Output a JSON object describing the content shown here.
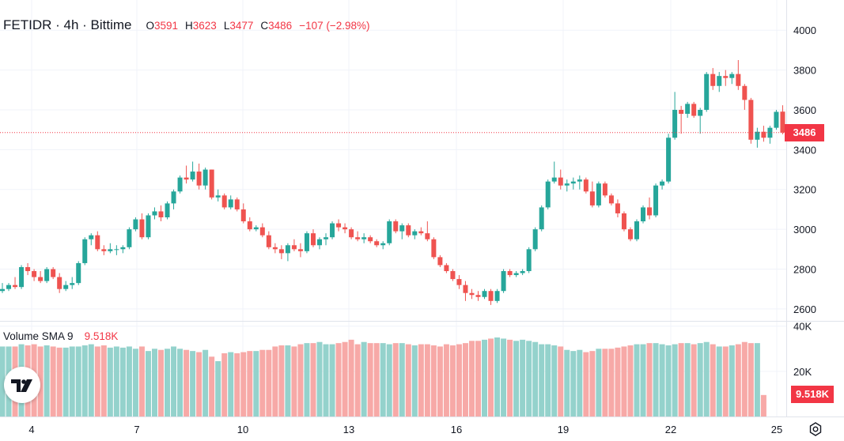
{
  "header": {
    "symbol": "FETIDR · 4h · Bittime",
    "open_label": "O",
    "open": "3591",
    "high_label": "H",
    "high": "3623",
    "low_label": "L",
    "low": "3477",
    "close_label": "C",
    "close": "3486",
    "change": "−107 (−2.98%)"
  },
  "volume_legend": {
    "name": "Volume SMA 9",
    "value": "9.518K"
  },
  "price_tag": "3486",
  "volume_tag": "9.518K",
  "colors": {
    "up": "#26a69a",
    "down": "#ef5350",
    "vol_up": "#94d2cc",
    "vol_down": "#f7a9a7",
    "grid": "#f0f3fa",
    "text": "#131722"
  },
  "icons": {
    "logo": "tradingview-logo-icon",
    "settings": "settings-icon"
  },
  "chart_data": {
    "type": "candlestick",
    "interval": "4h",
    "price_axis": {
      "ylim": [
        2540,
        4120
      ],
      "ticks": [
        2600,
        2800,
        3000,
        3200,
        3400,
        3600,
        3800,
        4000
      ]
    },
    "volume_axis": {
      "ylim": [
        0,
        42000
      ],
      "ticks": [
        "20K",
        "40K"
      ],
      "tick_values": [
        20000,
        40000
      ]
    },
    "x_ticks": [
      "4",
      "7",
      "10",
      "13",
      "16",
      "19",
      "22",
      "25"
    ],
    "last_price": 3486,
    "candles": [
      [
        2690,
        2730,
        2680,
        2700
      ],
      [
        2700,
        2730,
        2690,
        2720
      ],
      [
        2720,
        2760,
        2700,
        2710
      ],
      [
        2710,
        2820,
        2700,
        2810
      ],
      [
        2810,
        2830,
        2770,
        2790
      ],
      [
        2790,
        2800,
        2740,
        2760
      ],
      [
        2760,
        2790,
        2730,
        2740
      ],
      [
        2740,
        2810,
        2730,
        2800
      ],
      [
        2800,
        2810,
        2750,
        2760
      ],
      [
        2760,
        2780,
        2680,
        2700
      ],
      [
        2700,
        2740,
        2690,
        2720
      ],
      [
        2720,
        2760,
        2700,
        2730
      ],
      [
        2730,
        2840,
        2720,
        2830
      ],
      [
        2830,
        2960,
        2820,
        2950
      ],
      [
        2950,
        2980,
        2920,
        2970
      ],
      [
        2970,
        2990,
        2890,
        2900
      ],
      [
        2900,
        2920,
        2870,
        2890
      ],
      [
        2890,
        2930,
        2880,
        2900
      ],
      [
        2900,
        2920,
        2870,
        2900
      ],
      [
        2900,
        2920,
        2880,
        2910
      ],
      [
        2910,
        3010,
        2900,
        3000
      ],
      [
        3000,
        3060,
        2990,
        3050
      ],
      [
        3050,
        3080,
        2950,
        2960
      ],
      [
        2960,
        3080,
        2950,
        3070
      ],
      [
        3070,
        3110,
        3050,
        3090
      ],
      [
        3090,
        3120,
        3040,
        3060
      ],
      [
        3060,
        3140,
        3050,
        3130
      ],
      [
        3130,
        3200,
        3100,
        3190
      ],
      [
        3190,
        3270,
        3180,
        3260
      ],
      [
        3260,
        3320,
        3230,
        3250
      ],
      [
        3250,
        3340,
        3240,
        3290
      ],
      [
        3290,
        3330,
        3200,
        3220
      ],
      [
        3220,
        3310,
        3200,
        3300
      ],
      [
        3300,
        3300,
        3150,
        3160
      ],
      [
        3160,
        3200,
        3140,
        3170
      ],
      [
        3170,
        3180,
        3100,
        3110
      ],
      [
        3110,
        3170,
        3100,
        3150
      ],
      [
        3150,
        3160,
        3090,
        3100
      ],
      [
        3100,
        3130,
        3030,
        3040
      ],
      [
        3040,
        3060,
        2990,
        3000
      ],
      [
        3000,
        3020,
        2990,
        3010
      ],
      [
        3010,
        3030,
        2960,
        2970
      ],
      [
        2970,
        2990,
        2900,
        2910
      ],
      [
        2910,
        2930,
        2880,
        2900
      ],
      [
        2900,
        2920,
        2850,
        2880
      ],
      [
        2880,
        2930,
        2840,
        2920
      ],
      [
        2920,
        2950,
        2890,
        2900
      ],
      [
        2900,
        2930,
        2860,
        2890
      ],
      [
        2890,
        2990,
        2880,
        2980
      ],
      [
        2980,
        3000,
        2910,
        2920
      ],
      [
        2920,
        2960,
        2900,
        2950
      ],
      [
        2950,
        2980,
        2920,
        2960
      ],
      [
        2960,
        3040,
        2950,
        3030
      ],
      [
        3030,
        3050,
        2990,
        3010
      ],
      [
        3010,
        3030,
        2980,
        3000
      ],
      [
        3000,
        3010,
        2950,
        2960
      ],
      [
        2960,
        2990,
        2940,
        2950
      ],
      [
        2950,
        2980,
        2930,
        2960
      ],
      [
        2960,
        2970,
        2930,
        2940
      ],
      [
        2940,
        2950,
        2910,
        2920
      ],
      [
        2920,
        2940,
        2900,
        2930
      ],
      [
        2930,
        3050,
        2920,
        3040
      ],
      [
        3040,
        3050,
        2980,
        2990
      ],
      [
        2990,
        3030,
        2950,
        3020
      ],
      [
        3020,
        3030,
        2960,
        2970
      ],
      [
        2970,
        3000,
        2950,
        2990
      ],
      [
        2990,
        3010,
        2970,
        2980
      ],
      [
        2980,
        3040,
        2940,
        2950
      ],
      [
        2950,
        2960,
        2850,
        2860
      ],
      [
        2860,
        2870,
        2810,
        2820
      ],
      [
        2820,
        2830,
        2780,
        2790
      ],
      [
        2790,
        2800,
        2740,
        2750
      ],
      [
        2750,
        2770,
        2700,
        2720
      ],
      [
        2720,
        2740,
        2640,
        2680
      ],
      [
        2680,
        2700,
        2650,
        2670
      ],
      [
        2670,
        2690,
        2640,
        2660
      ],
      [
        2660,
        2700,
        2650,
        2690
      ],
      [
        2690,
        2700,
        2620,
        2640
      ],
      [
        2640,
        2700,
        2630,
        2690
      ],
      [
        2690,
        2800,
        2680,
        2790
      ],
      [
        2790,
        2800,
        2760,
        2770
      ],
      [
        2770,
        2790,
        2760,
        2780
      ],
      [
        2780,
        2800,
        2770,
        2790
      ],
      [
        2790,
        2910,
        2780,
        2900
      ],
      [
        2900,
        3010,
        2890,
        3000
      ],
      [
        3000,
        3120,
        2990,
        3110
      ],
      [
        3110,
        3250,
        3100,
        3240
      ],
      [
        3240,
        3340,
        3230,
        3260
      ],
      [
        3260,
        3300,
        3200,
        3220
      ],
      [
        3220,
        3250,
        3190,
        3230
      ],
      [
        3230,
        3260,
        3200,
        3240
      ],
      [
        3240,
        3270,
        3200,
        3250
      ],
      [
        3250,
        3260,
        3180,
        3190
      ],
      [
        3190,
        3240,
        3110,
        3120
      ],
      [
        3120,
        3240,
        3110,
        3230
      ],
      [
        3230,
        3240,
        3160,
        3170
      ],
      [
        3170,
        3180,
        3120,
        3130
      ],
      [
        3130,
        3150,
        3060,
        3080
      ],
      [
        3080,
        3090,
        2990,
        3000
      ],
      [
        3000,
        3010,
        2940,
        2950
      ],
      [
        2950,
        3050,
        2940,
        3040
      ],
      [
        3040,
        3120,
        3030,
        3110
      ],
      [
        3110,
        3160,
        3050,
        3070
      ],
      [
        3070,
        3230,
        3060,
        3220
      ],
      [
        3220,
        3250,
        3200,
        3240
      ],
      [
        3240,
        3480,
        3230,
        3460
      ],
      [
        3460,
        3690,
        3450,
        3600
      ],
      [
        3600,
        3620,
        3480,
        3580
      ],
      [
        3580,
        3640,
        3560,
        3630
      ],
      [
        3630,
        3640,
        3560,
        3570
      ],
      [
        3570,
        3610,
        3480,
        3600
      ],
      [
        3600,
        3790,
        3590,
        3780
      ],
      [
        3780,
        3810,
        3700,
        3720
      ],
      [
        3720,
        3790,
        3690,
        3770
      ],
      [
        3770,
        3800,
        3720,
        3760
      ],
      [
        3760,
        3790,
        3730,
        3780
      ],
      [
        3780,
        3850,
        3700,
        3720
      ],
      [
        3720,
        3730,
        3600,
        3650
      ],
      [
        3650,
        3660,
        3430,
        3450
      ],
      [
        3450,
        3510,
        3410,
        3490
      ],
      [
        3490,
        3520,
        3440,
        3460
      ],
      [
        3460,
        3520,
        3430,
        3510
      ],
      [
        3510,
        3600,
        3500,
        3590
      ],
      [
        3591,
        3623,
        3477,
        3486
      ]
    ],
    "volume": [
      31000,
      31000,
      31000,
      32000,
      31500,
      32000,
      31000,
      31500,
      31000,
      30500,
      30500,
      31000,
      31000,
      31500,
      32000,
      31000,
      31500,
      30500,
      31000,
      30500,
      31000,
      30000,
      31000,
      29000,
      30000,
      29500,
      30000,
      31000,
      30000,
      29500,
      29000,
      28500,
      29500,
      26500,
      24500,
      28000,
      28500,
      28000,
      28500,
      29000,
      29000,
      29500,
      29500,
      31000,
      31500,
      31500,
      31000,
      32000,
      32500,
      32500,
      33000,
      32000,
      32000,
      32500,
      33000,
      34000,
      32000,
      33000,
      32500,
      32500,
      32500,
      32000,
      32500,
      32500,
      32000,
      31500,
      32000,
      32000,
      31500,
      31000,
      32000,
      31500,
      32000,
      32500,
      33500,
      33500,
      34000,
      34500,
      35000,
      34500,
      34000,
      33500,
      34000,
      33500,
      33000,
      32000,
      32000,
      31500,
      31000,
      29500,
      29000,
      29500,
      28500,
      29000,
      30000,
      30000,
      30000,
      30500,
      31000,
      31500,
      32000,
      32000,
      32500,
      32500,
      32000,
      31500,
      32000,
      32500,
      32500,
      32000,
      32500,
      33000,
      32000,
      31000,
      31000,
      31500,
      32000,
      33000,
      32500,
      32500,
      9518
    ]
  }
}
